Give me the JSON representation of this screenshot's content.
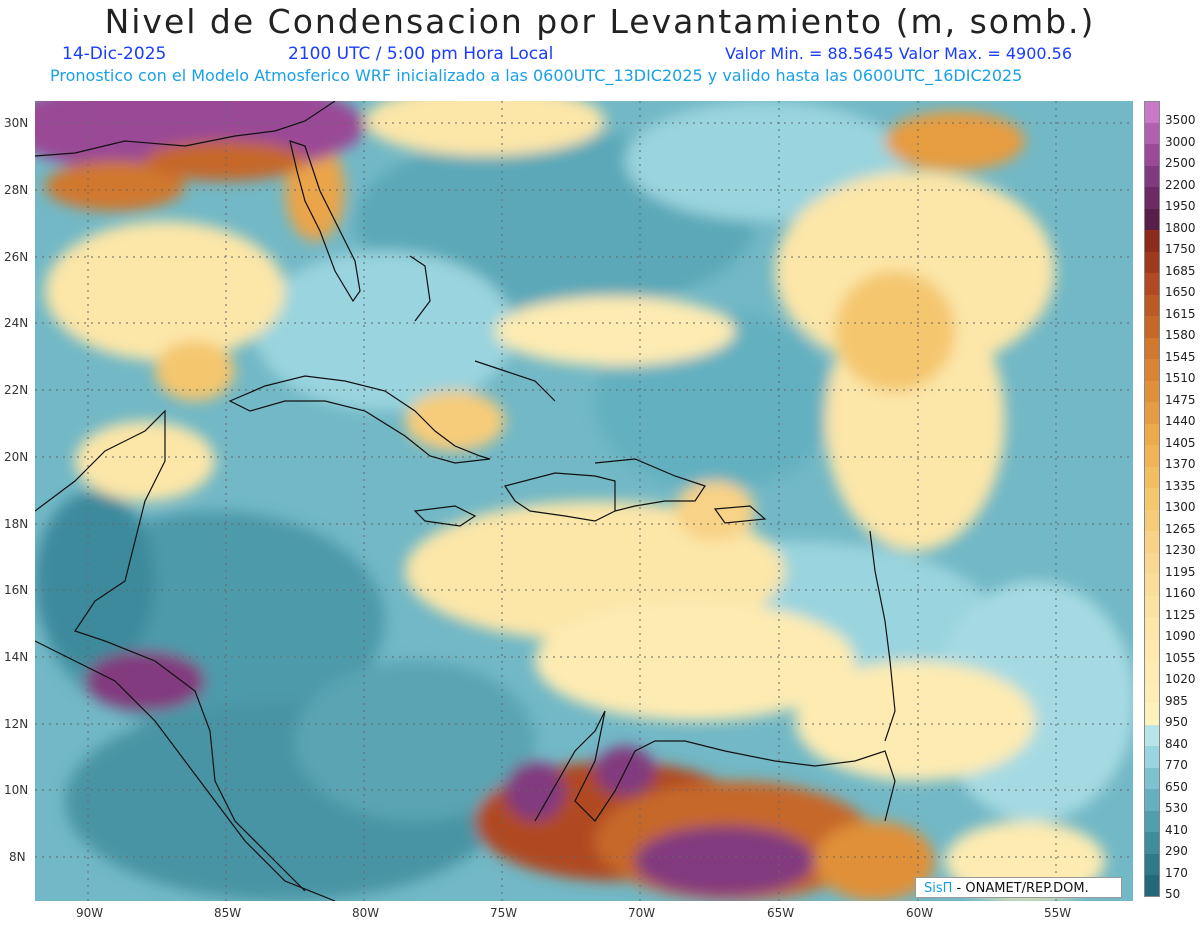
{
  "title": "Nivel de Condensacion por Levantamiento (m, somb.)",
  "date": "14-Dic-2025",
  "time": "2100 UTC / 5:00 pm Hora Local",
  "values": "Valor Min. = 88.5645  Valor Max. = 4900.56",
  "description": "Pronostico con el Modelo Atmosferico WRF inicializado a las 0600UTC_13DIC2025 y valido hasta las  0600UTC_16DIC2025",
  "credit": {
    "logo": "SisΠ",
    "text": " - ONAMET/REP.DOM."
  },
  "lat_labels": [
    "30N",
    "28N",
    "26N",
    "24N",
    "22N",
    "20N",
    "18N",
    "16N",
    "14N",
    "12N",
    "10N",
    "8N"
  ],
  "lon_labels": [
    "90W",
    "85W",
    "80W",
    "75W",
    "70W",
    "65W",
    "60W",
    "55W"
  ],
  "colorbar": {
    "labels": [
      "3500",
      "3000",
      "2500",
      "2200",
      "1950",
      "1800",
      "1750",
      "1685",
      "1650",
      "1615",
      "1580",
      "1545",
      "1510",
      "1475",
      "1440",
      "1405",
      "1370",
      "1335",
      "1300",
      "1265",
      "1230",
      "1195",
      "1160",
      "1125",
      "1090",
      "1055",
      "1020",
      "985",
      "950",
      "840",
      "770",
      "650",
      "530",
      "410",
      "290",
      "170",
      "50"
    ],
    "colors": [
      "#c878c8",
      "#b060b0",
      "#9a4a96",
      "#823a7e",
      "#6e2a66",
      "#5a1e4a",
      "#8c2c1c",
      "#9e3a1e",
      "#b04a22",
      "#bc5a26",
      "#c6682a",
      "#d0782e",
      "#d88432",
      "#e09038",
      "#e69c40",
      "#ecaa4a",
      "#f0b456",
      "#f2be62",
      "#f4c66e",
      "#f6cc7a",
      "#f8d286",
      "#f9d890",
      "#fadd98",
      "#fbe2a0",
      "#fce6a8",
      "#fde9ae",
      "#fdebb2",
      "#feeeb6",
      "#fff2bc",
      "#b8e4ea",
      "#9ad4de",
      "#7cc2d0",
      "#64b0c0",
      "#509eae",
      "#3e8c9c",
      "#2e7a8a",
      "#226a7a"
    ]
  }
}
